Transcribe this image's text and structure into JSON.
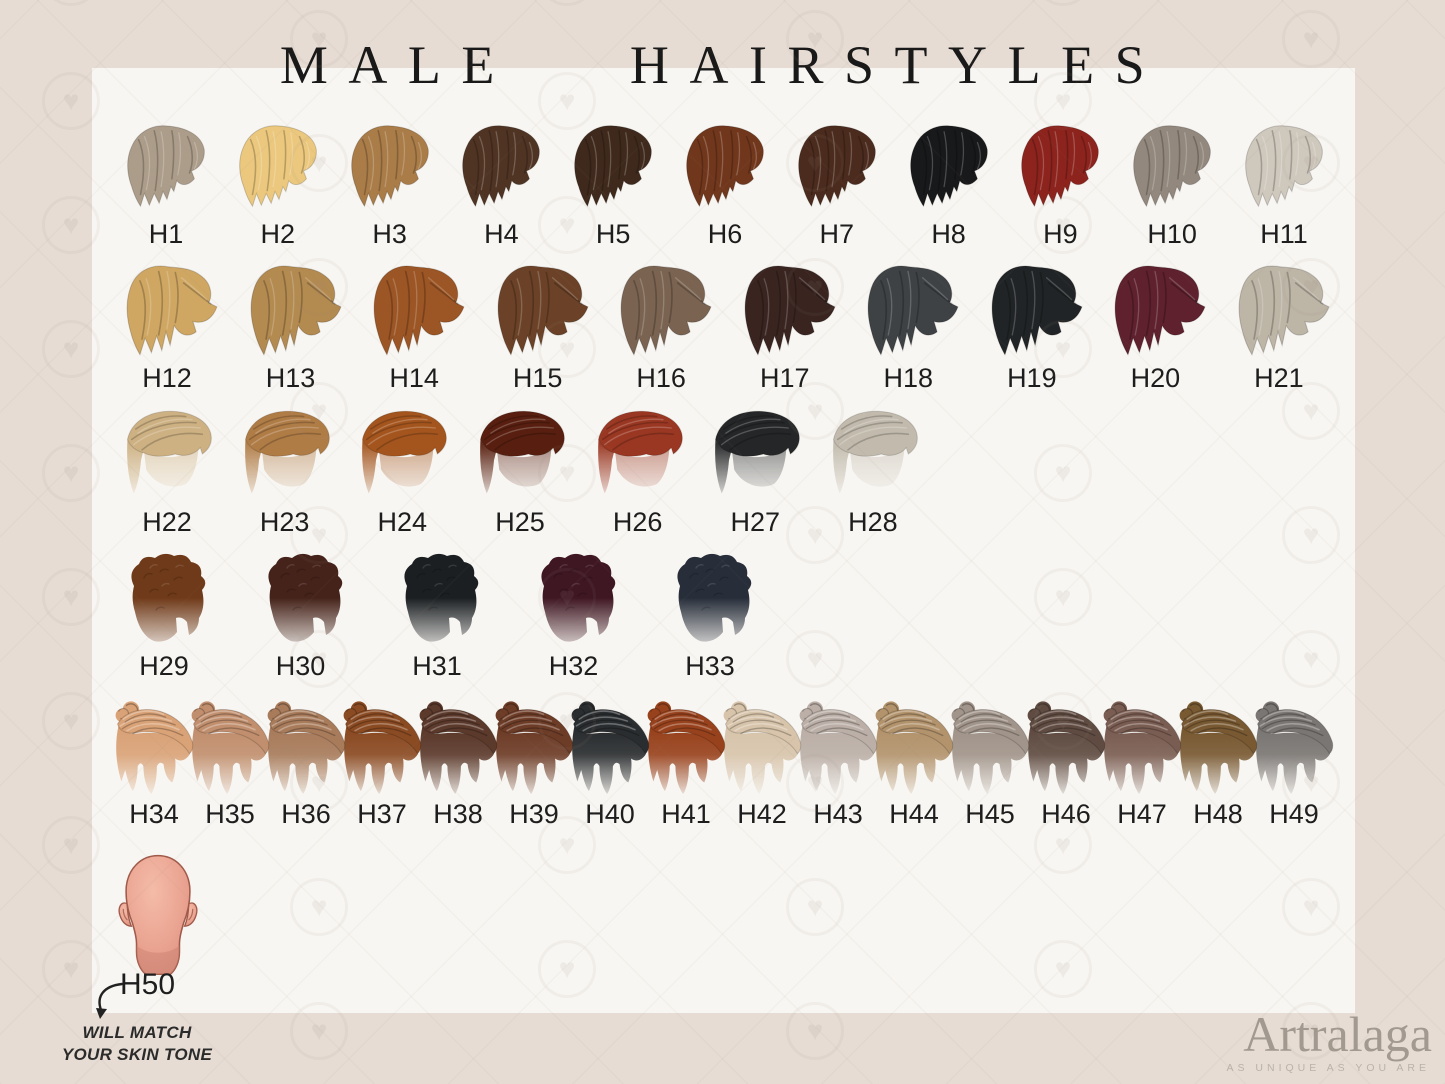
{
  "title": "MALE HAIRSTYLES",
  "watermark": {
    "icon": "heart-watermark-icon",
    "glyph": "♥"
  },
  "rows": [
    {
      "name": "short-shaggy-hair-row",
      "shape": "shaggy",
      "icon": "shaggy-hair-icon",
      "items": [
        {
          "id": "H1",
          "color": "#ac9d8a"
        },
        {
          "id": "H2",
          "color": "#ebc87e"
        },
        {
          "id": "H3",
          "color": "#a97c48"
        },
        {
          "id": "H4",
          "color": "#4f3423"
        },
        {
          "id": "H5",
          "color": "#3f291c"
        },
        {
          "id": "H6",
          "color": "#71371c"
        },
        {
          "id": "H7",
          "color": "#4b2b1d"
        },
        {
          "id": "H8",
          "color": "#18191b"
        },
        {
          "id": "H9",
          "color": "#8c231d"
        },
        {
          "id": "H10",
          "color": "#93887d"
        },
        {
          "id": "H11",
          "color": "#cfc8bd"
        }
      ]
    },
    {
      "name": "medium-swept-hair-row",
      "shape": "swept",
      "icon": "swept-hair-icon",
      "items": [
        {
          "id": "H12",
          "color": "#cfa763"
        },
        {
          "id": "H13",
          "color": "#b38a50"
        },
        {
          "id": "H14",
          "color": "#9c5524"
        },
        {
          "id": "H15",
          "color": "#6b4227"
        },
        {
          "id": "H16",
          "color": "#7a6350"
        },
        {
          "id": "H17",
          "color": "#392420"
        },
        {
          "id": "H18",
          "color": "#3e4245"
        },
        {
          "id": "H19",
          "color": "#212426"
        },
        {
          "id": "H20",
          "color": "#5e212d"
        },
        {
          "id": "H21",
          "color": "#bdb5a6"
        }
      ]
    },
    {
      "name": "textured-crop-hair-row",
      "shape": "crop",
      "icon": "crop-hair-icon",
      "items": [
        {
          "id": "H22",
          "color": "#cdb183"
        },
        {
          "id": "H23",
          "color": "#b07c46"
        },
        {
          "id": "H24",
          "color": "#a4551e"
        },
        {
          "id": "H25",
          "color": "#581f10"
        },
        {
          "id": "H26",
          "color": "#9a3722"
        },
        {
          "id": "H27",
          "color": "#242628"
        },
        {
          "id": "H28",
          "color": "#c2bbad"
        }
      ]
    },
    {
      "name": "curly-hair-row",
      "shape": "curly",
      "icon": "curly-hair-icon",
      "items": [
        {
          "id": "H29",
          "color": "#6f3a19"
        },
        {
          "id": "H30",
          "color": "#45231a"
        },
        {
          "id": "H31",
          "color": "#1b1f22"
        },
        {
          "id": "H32",
          "color": "#3f1723"
        },
        {
          "id": "H33",
          "color": "#272e3a"
        }
      ]
    },
    {
      "name": "man-bun-hair-row",
      "shape": "bun",
      "icon": "man-bun-hair-icon",
      "items": [
        {
          "id": "H34",
          "color": "#d9a277"
        },
        {
          "id": "H35",
          "color": "#c18f6e"
        },
        {
          "id": "H36",
          "color": "#a87b5b"
        },
        {
          "id": "H37",
          "color": "#8a4a22"
        },
        {
          "id": "H38",
          "color": "#5b392b"
        },
        {
          "id": "H39",
          "color": "#6d3c27"
        },
        {
          "id": "H40",
          "color": "#2a2d2f"
        },
        {
          "id": "H41",
          "color": "#98421d"
        },
        {
          "id": "H42",
          "color": "#d7c4ab"
        },
        {
          "id": "H43",
          "color": "#bbafa7"
        },
        {
          "id": "H44",
          "color": "#b2936c"
        },
        {
          "id": "H45",
          "color": "#a1948a"
        },
        {
          "id": "H46",
          "color": "#5f4b41"
        },
        {
          "id": "H47",
          "color": "#7a5d52"
        },
        {
          "id": "H48",
          "color": "#785932"
        },
        {
          "id": "H49",
          "color": "#7a7673"
        }
      ]
    }
  ],
  "bald": {
    "id": "H50",
    "skin_color": "#e9a18f",
    "note_line1": "WILL MATCH",
    "note_line2": "YOUR SKIN TONE"
  },
  "brand": {
    "name": "Artralaga",
    "tagline": "AS UNIQUE AS YOU ARE"
  }
}
